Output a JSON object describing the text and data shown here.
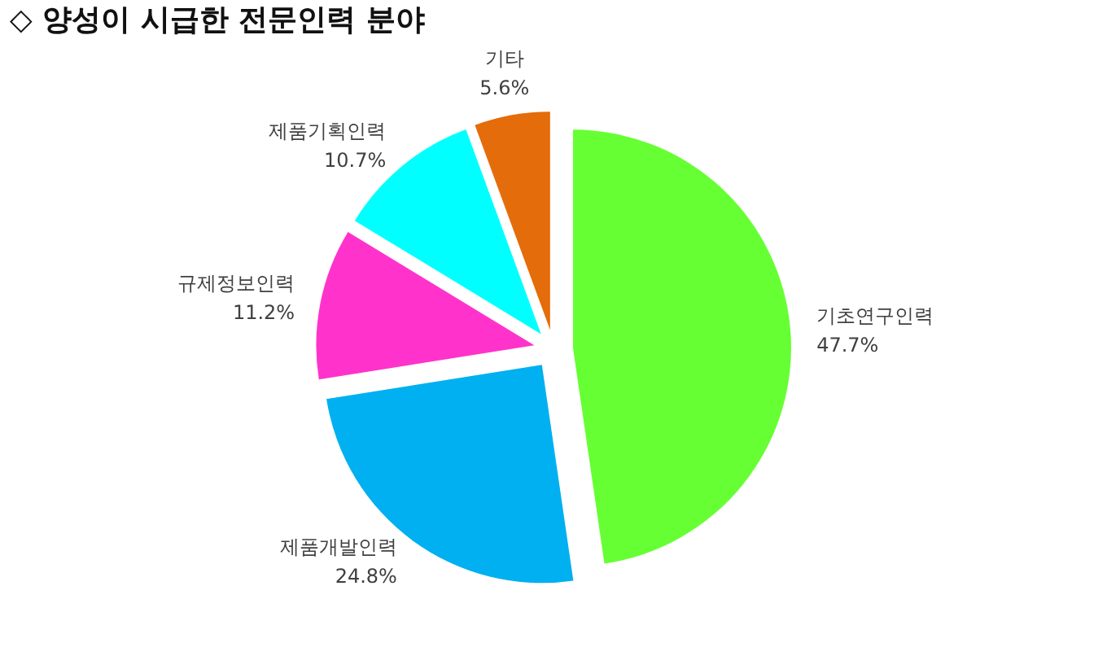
{
  "chart_data": {
    "type": "pie",
    "title": "◇ 양성이 시급한 전문인력 분야",
    "categories": [
      "기초연구인력",
      "제품개발인력",
      "규제정보인력",
      "제품기획인력",
      "기타"
    ],
    "values": [
      47.7,
      24.8,
      11.2,
      10.7,
      5.6
    ],
    "colors": [
      "#66ff33",
      "#00b0f0",
      "#ff33cc",
      "#00ffff",
      "#e46c0a"
    ],
    "value_labels": [
      "47.7%",
      "24.8%",
      "11.2%",
      "10.7%",
      "5.6%"
    ]
  }
}
